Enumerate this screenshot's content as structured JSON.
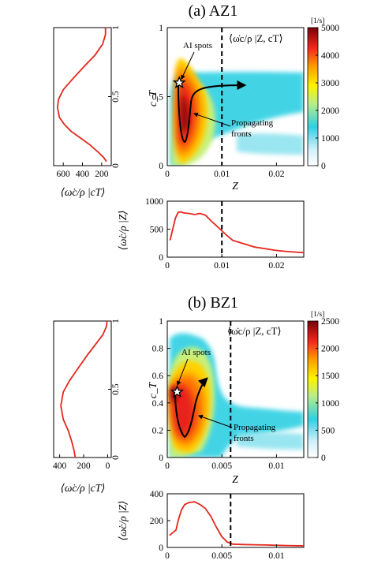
{
  "chart_data": [
    {
      "type": "heatmap",
      "panel": "a",
      "title": "(a) AZ1",
      "xlabel": "Z",
      "ylabel": "c_T",
      "xlim": [
        0,
        0.025
      ],
      "ylim": [
        0,
        1
      ],
      "xticks": [
        "0",
        "0.01",
        "0.02"
      ],
      "yticks": [
        "0",
        "0.5",
        "1"
      ],
      "colorbar": {
        "unit": "[1/s]",
        "range": [
          0,
          5000
        ],
        "ticks": [
          "5000",
          "4000",
          "3000",
          "2000",
          "1000",
          "0"
        ]
      },
      "legend": "⟨ω̇c/ρ |Z, cT⟩",
      "dashed_line_x": 0.01,
      "ai_spot": {
        "x": 0.0022,
        "y": 0.6
      },
      "annotations": [
        "AI spots",
        "Propagating",
        "fronts"
      ],
      "left_profile": {
        "xlabel": "⟨ω̇c/ρ |cT⟩",
        "xticks": [
          "600",
          "400",
          "200"
        ],
        "yticks": [
          "0",
          "0.5",
          "1"
        ],
        "xlim": [
          700,
          100
        ],
        "ylim": [
          0,
          1
        ],
        "series": [
          {
            "x": [
              150,
              180,
              240,
              320,
              420,
              520,
              590,
              640,
              660,
              650,
              600,
              500,
              380,
              270,
              190,
              160,
              160
            ],
            "y": [
              0.03,
              0.06,
              0.1,
              0.15,
              0.2,
              0.25,
              0.3,
              0.35,
              0.42,
              0.48,
              0.55,
              0.63,
              0.72,
              0.8,
              0.88,
              0.95,
              1.0
            ]
          }
        ]
      },
      "bottom_profile": {
        "ylabel": "⟨ω̇c/ρ |Z⟩",
        "xlabel": "",
        "xticks": [
          "0",
          "0.01",
          "0.02"
        ],
        "yticks": [
          "0",
          "500",
          "1000"
        ],
        "xlim": [
          0,
          0.025
        ],
        "ylim": [
          0,
          1000
        ],
        "dashed_line_x": 0.01,
        "series": [
          {
            "x": [
              0.0005,
              0.001,
              0.0015,
              0.002,
              0.0025,
              0.003,
              0.004,
              0.005,
              0.006,
              0.007,
              0.008,
              0.009,
              0.01,
              0.011,
              0.012,
              0.014,
              0.016,
              0.018,
              0.02,
              0.022,
              0.025
            ],
            "y": [
              300,
              500,
              700,
              800,
              810,
              790,
              780,
              760,
              780,
              750,
              650,
              560,
              470,
              380,
              300,
              240,
              180,
              150,
              120,
              100,
              80
            ]
          }
        ]
      }
    },
    {
      "type": "heatmap",
      "panel": "b",
      "title": "(b) BZ1",
      "xlabel": "Z",
      "ylabel": "c_T",
      "xlim": [
        0,
        0.0125
      ],
      "ylim": [
        0,
        1
      ],
      "xticks": [
        "0",
        "0.005",
        "0.01"
      ],
      "yticks": [
        "0",
        "0.2",
        "0.4",
        "0.6",
        "0.8",
        "1"
      ],
      "colorbar": {
        "unit": "[1/s]",
        "range": [
          0,
          2500
        ],
        "ticks": [
          "2500",
          "2000",
          "1500",
          "1000",
          "500",
          "0"
        ]
      },
      "legend": "⟨ω̇c/ρ |Z, cT⟩",
      "dashed_line_x": 0.0058,
      "ai_spot": {
        "x": 0.0009,
        "y": 0.48
      },
      "annotations": [
        "AI spots",
        "Propagating",
        "fronts"
      ],
      "left_profile": {
        "xlabel": "⟨ω̇c/ρ |cT⟩",
        "xticks": [
          "400",
          "200",
          "0"
        ],
        "yticks": [
          "0",
          "0.5",
          "1"
        ],
        "xlim": [
          450,
          -30
        ],
        "ylim": [
          0,
          1
        ],
        "series": [
          {
            "x": [
              270,
              280,
              300,
              330,
              370,
              390,
              370,
              320,
              250,
              170,
              100,
              40,
              10,
              5
            ],
            "y": [
              0.0,
              0.05,
              0.12,
              0.2,
              0.28,
              0.38,
              0.48,
              0.56,
              0.65,
              0.75,
              0.83,
              0.9,
              0.96,
              1.0
            ]
          }
        ]
      },
      "bottom_profile": {
        "ylabel": "⟨ω̇c/ρ |Z⟩",
        "xlabel": "",
        "xticks": [
          "0",
          "0.005",
          "0.01"
        ],
        "yticks": [
          "0",
          "200",
          "400"
        ],
        "xlim": [
          0,
          0.0125
        ],
        "ylim": [
          0,
          400
        ],
        "dashed_line_x": 0.0058,
        "series": [
          {
            "x": [
              0.0002,
              0.0005,
              0.0008,
              0.001,
              0.0013,
              0.0016,
              0.002,
              0.0025,
              0.003,
              0.0035,
              0.004,
              0.0045,
              0.005,
              0.0055,
              0.006,
              0.007,
              0.008,
              0.009,
              0.01,
              0.011,
              0.0125
            ],
            "y": [
              90,
              110,
              130,
              200,
              280,
              320,
              335,
              340,
              320,
              290,
              230,
              150,
              80,
              40,
              25,
              22,
              20,
              18,
              16,
              14,
              12
            ]
          }
        ]
      }
    }
  ]
}
